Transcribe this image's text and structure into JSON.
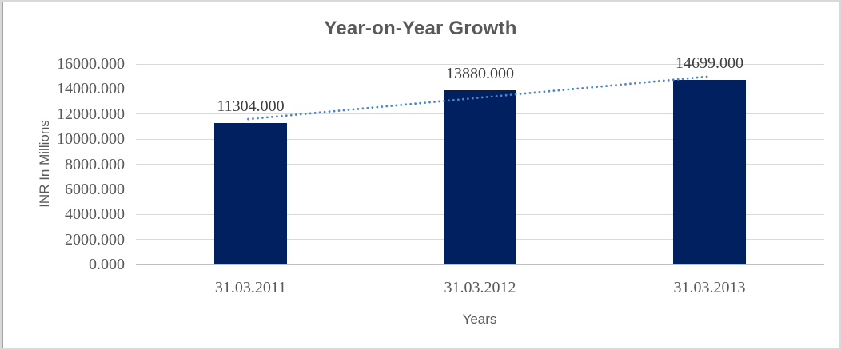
{
  "chart_data": {
    "type": "bar",
    "title": "Year-on-Year Growth",
    "xlabel": "Years",
    "ylabel": "INR In Millions",
    "categories": [
      "31.03.2011",
      "31.03.2012",
      "31.03.2013"
    ],
    "values": [
      11304,
      13880,
      14699
    ],
    "data_labels": [
      "11304.000",
      "13880.000",
      "14699.000"
    ],
    "ylim": [
      0,
      16000
    ],
    "ytick_step": 2000,
    "ytick_labels_top_to_bottom": [
      "16000.000",
      "14000.000",
      "12000.000",
      "10000.000",
      "8000.000",
      "6000.000",
      "4000.000",
      "2000.000",
      "0.000"
    ],
    "grid": "horizontal",
    "legend": "none",
    "trendline": {
      "type": "linear",
      "style": "dotted"
    }
  },
  "colors": {
    "bar": "#002060",
    "trendline": "#4a86c8",
    "gridline": "#d9d9d9",
    "axis_line": "#c0c0c0",
    "title_text": "#595959",
    "axis_title_text": "#595959",
    "tick_text": "#595959",
    "data_label_text": "#3f3f3f"
  }
}
